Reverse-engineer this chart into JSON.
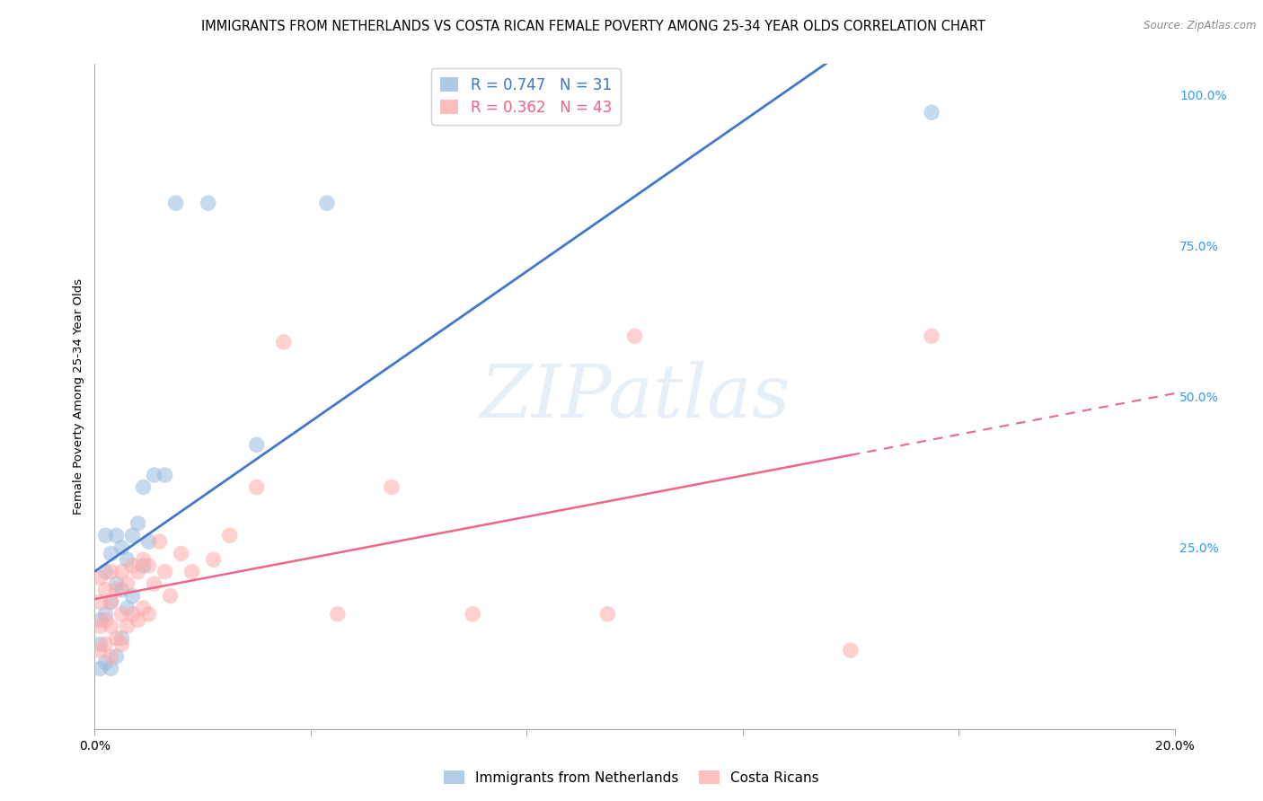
{
  "title": "IMMIGRANTS FROM NETHERLANDS VS COSTA RICAN FEMALE POVERTY AMONG 25-34 YEAR OLDS CORRELATION CHART",
  "source": "Source: ZipAtlas.com",
  "ylabel": "Female Poverty Among 25-34 Year Olds",
  "xlim": [
    0.0,
    0.2
  ],
  "ylim": [
    -0.05,
    1.05
  ],
  "r_blue": 0.747,
  "n_blue": 31,
  "r_pink": 0.362,
  "n_pink": 43,
  "blue_color": "#99BBDD",
  "pink_color": "#FFAAAA",
  "blue_line_color": "#4477CC",
  "pink_line_color": "#EE6688",
  "title_fontsize": 10.5,
  "axis_label_fontsize": 9.5,
  "tick_fontsize": 10,
  "legend_fontsize": 12,
  "watermark_color": "#C8DDEF",
  "background_color": "#FFFFFF",
  "grid_color": "#CCCCCC",
  "blue_points_x": [
    0.001,
    0.001,
    0.001,
    0.002,
    0.002,
    0.002,
    0.002,
    0.003,
    0.003,
    0.003,
    0.004,
    0.004,
    0.004,
    0.005,
    0.005,
    0.005,
    0.006,
    0.006,
    0.007,
    0.007,
    0.008,
    0.009,
    0.009,
    0.01,
    0.011,
    0.013,
    0.015,
    0.021,
    0.03,
    0.043,
    0.155
  ],
  "blue_points_y": [
    0.05,
    0.09,
    0.13,
    0.06,
    0.14,
    0.21,
    0.27,
    0.05,
    0.16,
    0.24,
    0.07,
    0.19,
    0.27,
    0.1,
    0.18,
    0.25,
    0.15,
    0.23,
    0.17,
    0.27,
    0.29,
    0.22,
    0.35,
    0.26,
    0.37,
    0.37,
    0.82,
    0.82,
    0.42,
    0.82,
    0.97
  ],
  "pink_points_x": [
    0.001,
    0.001,
    0.001,
    0.001,
    0.002,
    0.002,
    0.002,
    0.003,
    0.003,
    0.003,
    0.003,
    0.004,
    0.004,
    0.005,
    0.005,
    0.005,
    0.006,
    0.006,
    0.007,
    0.007,
    0.008,
    0.008,
    0.009,
    0.009,
    0.01,
    0.01,
    0.011,
    0.012,
    0.013,
    0.014,
    0.016,
    0.018,
    0.022,
    0.025,
    0.03,
    0.035,
    0.045,
    0.055,
    0.07,
    0.095,
    0.1,
    0.14,
    0.155
  ],
  "pink_points_y": [
    0.08,
    0.12,
    0.16,
    0.2,
    0.09,
    0.13,
    0.18,
    0.07,
    0.12,
    0.16,
    0.21,
    0.1,
    0.18,
    0.09,
    0.14,
    0.21,
    0.12,
    0.19,
    0.14,
    0.22,
    0.13,
    0.21,
    0.15,
    0.23,
    0.14,
    0.22,
    0.19,
    0.26,
    0.21,
    0.17,
    0.24,
    0.21,
    0.23,
    0.27,
    0.35,
    0.59,
    0.14,
    0.35,
    0.14,
    0.14,
    0.6,
    0.08,
    0.6
  ],
  "pink_line_x_solid_end": 0.14,
  "pink_line_x_dashed_end": 0.2
}
